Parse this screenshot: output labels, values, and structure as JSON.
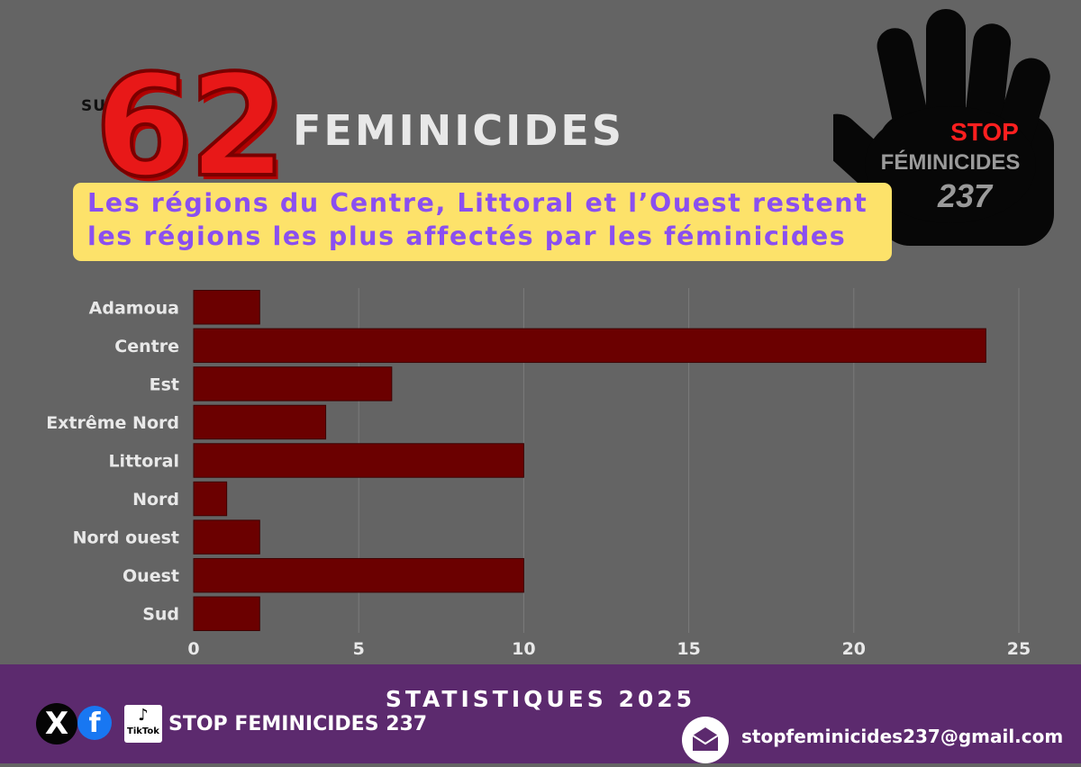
{
  "header": {
    "prefix": "SUR",
    "count": "62",
    "title": "FEMINICIDES"
  },
  "callout": {
    "line1": "Les régions du Centre, Littoral et l’Ouest restent",
    "line2": "les régions les plus affectés par les féminicides"
  },
  "logo": {
    "stop": "STOP",
    "name": "FÉMINICIDES",
    "number": "237"
  },
  "chart_data": {
    "type": "bar",
    "orientation": "horizontal",
    "categories": [
      "Adamoua",
      "Centre",
      "Est",
      "Extrême Nord",
      "Littoral",
      "Nord",
      "Nord ouest",
      "Ouest",
      "Sud"
    ],
    "series": [
      {
        "values": [
          2,
          24,
          6,
          4,
          10,
          1,
          2,
          10,
          2
        ],
        "color": "#6b0000"
      }
    ],
    "xlim": [
      0,
      25
    ],
    "xticks": [
      0,
      5,
      10,
      15,
      20,
      25
    ],
    "grid": true
  },
  "footer": {
    "title": "STATISTIQUES 2025",
    "org": "STOP FEMINICIDES 237",
    "email": "stopfeminicides237@gmail.com",
    "x_glyph": "X",
    "fb_glyph": "f",
    "tiktok_label": "TikTok",
    "icons": [
      "x-icon",
      "facebook-icon",
      "tiktok-icon",
      "mail-icon"
    ]
  }
}
